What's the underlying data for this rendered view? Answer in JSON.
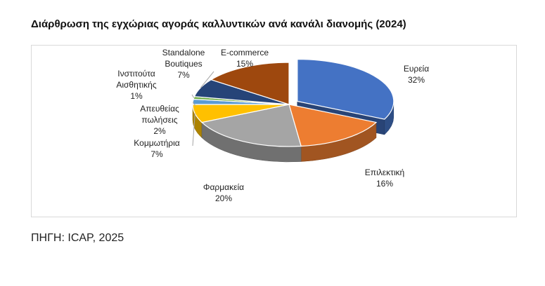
{
  "header": {
    "title": "Διάρθρωση της εγχώριας αγοράς καλλυντικών ανά κανάλι διανομής (2024)"
  },
  "footer": {
    "source": "ΠΗΓΗ: ICAP, 2025"
  },
  "chart_data": {
    "type": "pie",
    "title": "Διάρθρωση της εγχώριας αγοράς καλλυντικών ανά κανάλι διανομής (2024)",
    "three_d": true,
    "start_angle_deg": 0,
    "slices": [
      {
        "name": "Ευρεία",
        "lines": [
          "Ευρεία"
        ],
        "value": 32,
        "label": "32%",
        "color": "#4472c4",
        "explode": true
      },
      {
        "name": "Επιλεκτική",
        "lines": [
          "Επιλεκτική"
        ],
        "value": 16,
        "label": "16%",
        "color": "#ed7d31",
        "explode": false
      },
      {
        "name": "Φαρμακεία",
        "lines": [
          "Φαρμακεία"
        ],
        "value": 20,
        "label": "20%",
        "color": "#a5a5a5",
        "explode": false
      },
      {
        "name": "Κομμωτήρια",
        "lines": [
          "Κομμωτήρια"
        ],
        "value": 7,
        "label": "7%",
        "color": "#ffc000",
        "explode": false
      },
      {
        "name": "Απευθείας πωλήσεις",
        "lines": [
          "Απευθείας",
          "πωλήσεις"
        ],
        "value": 2,
        "label": "2%",
        "color": "#5b9bd5",
        "explode": false
      },
      {
        "name": "Ινστιτούτα Αισθητικής",
        "lines": [
          "Ινστιτούτα",
          "Αισθητικής"
        ],
        "value": 1,
        "label": "1%",
        "color": "#70ad47",
        "explode": false
      },
      {
        "name": "Standalone Boutiques",
        "lines": [
          "Standalone",
          "Boutiques"
        ],
        "value": 7,
        "label": "7%",
        "color": "#264478",
        "explode": false
      },
      {
        "name": "E-commerce",
        "lines": [
          "E-commerce"
        ],
        "value": 15,
        "label": "15%",
        "color": "#9e480e",
        "explode": false
      }
    ]
  }
}
